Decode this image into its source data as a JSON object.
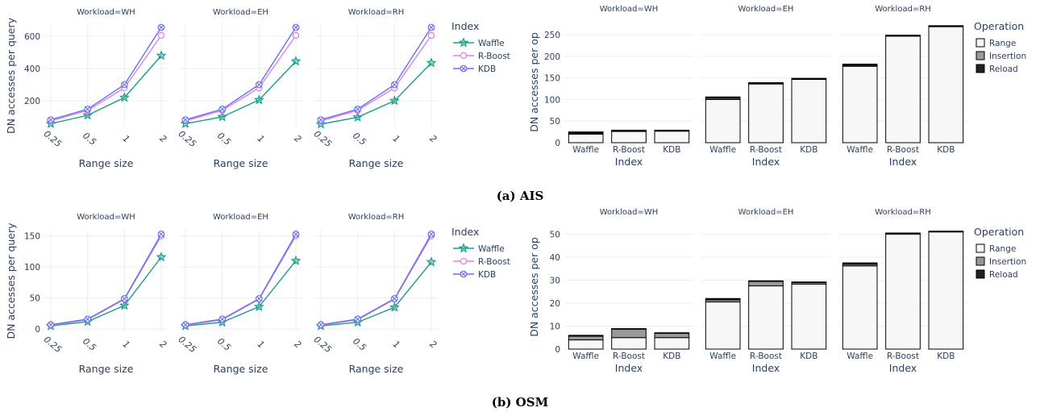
{
  "captions": {
    "a": "(a) AIS",
    "b": "(b) OSM"
  },
  "colors": {
    "Waffle": "#1a9e8a",
    "R-Boost": "#e07ee0",
    "KDB": "#6570f0",
    "Range": "#f7f7f7",
    "Insertion": "#999999",
    "Reload": "#222222",
    "text": "#2a3f5f",
    "grid": "#ebedf2"
  },
  "chart_data": [
    {
      "type": "line",
      "id": "ais-lines",
      "facet_prefix": "Workload=",
      "facets": [
        "WH",
        "EH",
        "RH"
      ],
      "x": [
        0.25,
        0.5,
        1,
        2
      ],
      "xtick_labels": [
        "0.25",
        "0.5",
        "1",
        "2"
      ],
      "xlabel": "Range size",
      "ylabel": "DN accesses per query",
      "ylim": [
        40,
        670
      ],
      "yticks": [
        200,
        400,
        600
      ],
      "legend_title": "Index",
      "legend_position": "top-right",
      "grid": true,
      "series": [
        {
          "name": "Waffle",
          "marker": "star",
          "values": [
            [
              58,
              110,
              220,
              480
            ],
            [
              58,
              100,
              205,
              445
            ],
            [
              55,
              98,
              200,
              435
            ]
          ]
        },
        {
          "name": "R-Boost",
          "marker": "circle",
          "values": [
            [
              75,
              140,
              280,
              605
            ],
            [
              75,
              140,
              280,
              605
            ],
            [
              75,
              140,
              280,
              605
            ]
          ]
        },
        {
          "name": "KDB",
          "marker": "circle-x",
          "values": [
            [
              82,
              148,
              300,
              655
            ],
            [
              82,
              148,
              300,
              655
            ],
            [
              82,
              148,
              300,
              655
            ]
          ]
        }
      ]
    },
    {
      "type": "bar",
      "stacked": true,
      "id": "ais-bars",
      "facet_prefix": "Workload=",
      "facets": [
        "WH",
        "EH",
        "RH"
      ],
      "categories": [
        "Waffle",
        "R-Boost",
        "KDB"
      ],
      "xlabel": "Index",
      "ylabel": "DN accesses per op",
      "ylim": [
        0,
        280
      ],
      "yticks": [
        0,
        50,
        100,
        150,
        200,
        250
      ],
      "legend_title": "Operation",
      "legend_position": "top-right",
      "grid": true,
      "series": [
        {
          "name": "Range",
          "values": [
            [
              20,
              26,
              27
            ],
            [
              100,
              136,
              147
            ],
            [
              177,
              247,
              269
            ]
          ]
        },
        {
          "name": "Insertion",
          "values": [
            [
              2,
              2,
              1
            ],
            [
              3,
              2,
              1
            ],
            [
              2,
              1,
              1
            ]
          ]
        },
        {
          "name": "Reload",
          "values": [
            [
              3,
              1,
              1
            ],
            [
              3,
              1,
              1
            ],
            [
              3,
              1,
              1
            ]
          ]
        }
      ]
    },
    {
      "type": "line",
      "id": "osm-lines",
      "facet_prefix": "Workload=",
      "facets": [
        "WH",
        "EH",
        "RH"
      ],
      "x": [
        0.25,
        0.5,
        1,
        2
      ],
      "xtick_labels": [
        "0.25",
        "0.5",
        "1",
        "2"
      ],
      "xlabel": "Range size",
      "ylabel": "DN accesses per query",
      "ylim": [
        -5,
        160
      ],
      "yticks": [
        0,
        50,
        100,
        150
      ],
      "legend_title": "Index",
      "legend_position": "top-right",
      "grid": true,
      "series": [
        {
          "name": "Waffle",
          "marker": "star",
          "values": [
            [
              5,
              12,
              38,
              116
            ],
            [
              5,
              11,
              36,
              110
            ],
            [
              5,
              11,
              35,
              108
            ]
          ]
        },
        {
          "name": "R-Boost",
          "marker": "circle",
          "values": [
            [
              6,
              15,
              48,
              150
            ],
            [
              6,
              15,
              48,
              150
            ],
            [
              6,
              15,
              48,
              150
            ]
          ]
        },
        {
          "name": "KDB",
          "marker": "circle-x",
          "values": [
            [
              7,
              16,
              49,
              153
            ],
            [
              7,
              16,
              49,
              153
            ],
            [
              7,
              16,
              49,
              153
            ]
          ]
        }
      ]
    },
    {
      "type": "bar",
      "stacked": true,
      "id": "osm-bars",
      "facet_prefix": "Workload=",
      "facets": [
        "WH",
        "EH",
        "RH"
      ],
      "categories": [
        "Waffle",
        "R-Boost",
        "KDB"
      ],
      "xlabel": "Index",
      "ylabel": "DN accesses per op",
      "ylim": [
        0,
        54
      ],
      "yticks": [
        0,
        10,
        20,
        30,
        40,
        50
      ],
      "legend_title": "Operation",
      "legend_position": "top-right",
      "grid": true,
      "series": [
        {
          "name": "Range",
          "values": [
            [
              4,
              5,
              5
            ],
            [
              20.5,
              27.5,
              28.3
            ],
            [
              36.2,
              50,
              51
            ]
          ]
        },
        {
          "name": "Insertion",
          "values": [
            [
              1.6,
              3.7,
              2
            ],
            [
              0.9,
              2,
              0.8
            ],
            [
              0.7,
              0.3,
              0.2
            ]
          ]
        },
        {
          "name": "Reload",
          "values": [
            [
              0.4,
              0.2,
              0.1
            ],
            [
              0.6,
              0.2,
              0.1
            ],
            [
              0.6,
              0.2,
              0.1
            ]
          ]
        }
      ]
    }
  ]
}
